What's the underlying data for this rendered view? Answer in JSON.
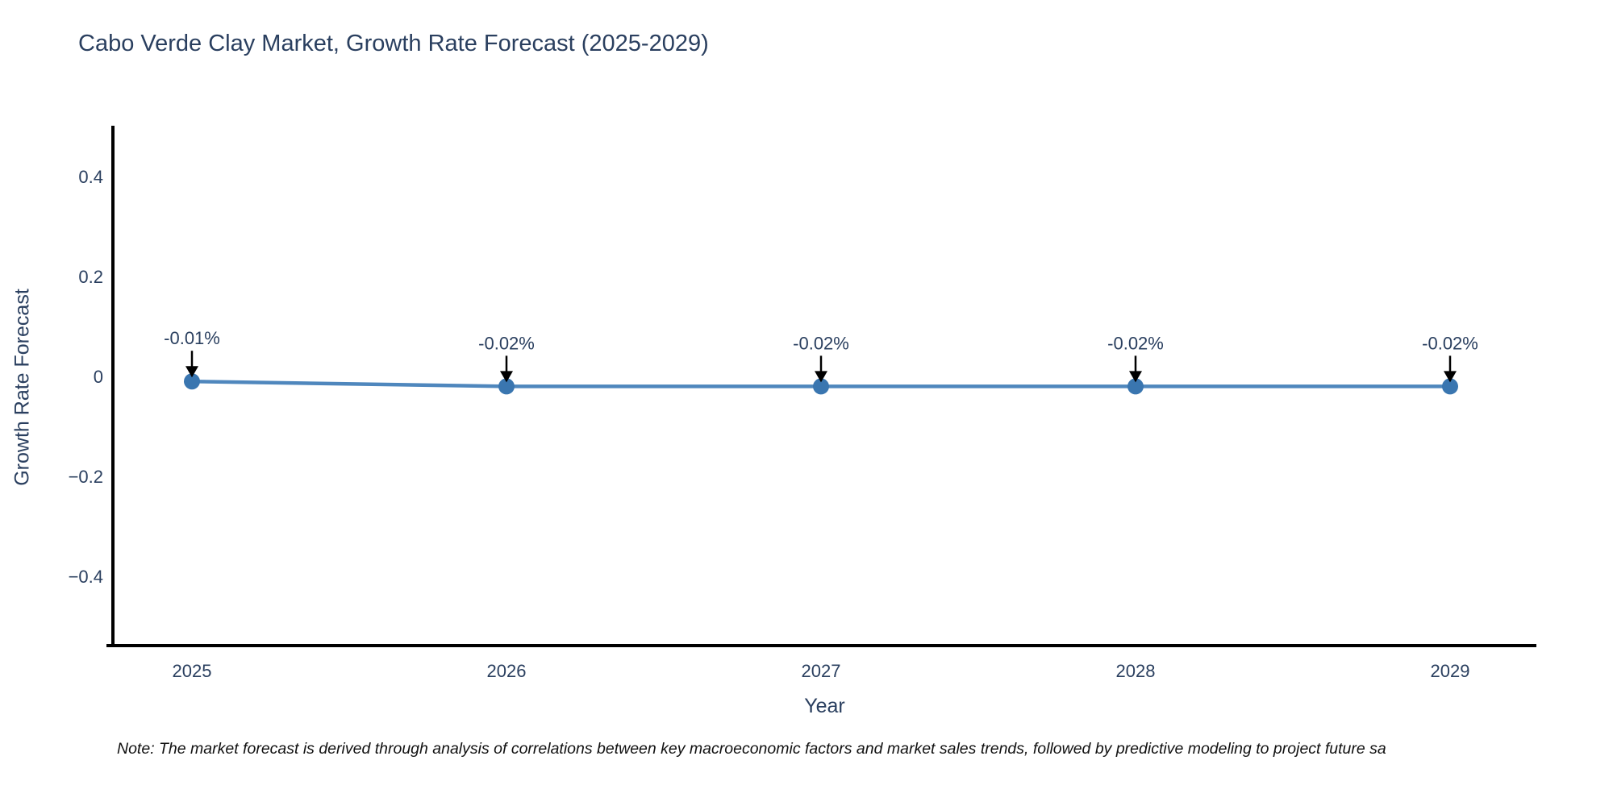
{
  "note": "Note: The market forecast is derived through analysis of correlations between key macroeconomic factors and market sales trends, followed by predictive modeling to project future sa",
  "colors": {
    "text": "#2a3f5f",
    "axis_line": "#000000",
    "series_line": "#4f87bd",
    "marker_fill": "#3a76b0",
    "arrow": "#000000",
    "background": "#ffffff",
    "note_text": "#111111"
  },
  "chart_data": {
    "type": "line",
    "title": "Cabo Verde Clay Market, Growth Rate Forecast (2025-2029)",
    "x": [
      2025,
      2026,
      2027,
      2028,
      2029
    ],
    "xtick_labels": [
      "2025",
      "2026",
      "2027",
      "2028",
      "2029"
    ],
    "series": [
      {
        "name": "Growth Rate Forecast",
        "values": [
          -0.01,
          -0.02,
          -0.02,
          -0.02,
          -0.02
        ]
      }
    ],
    "annotations": [
      "-0.01%",
      "-0.02%",
      "-0.02%",
      "-0.02%",
      "-0.02%"
    ],
    "xlabel": "Year",
    "ylabel": "Growth Rate Forecast",
    "ylim": [
      -0.54,
      0.5
    ],
    "yticks": [
      0.4,
      0.2,
      0,
      -0.2,
      -0.4
    ],
    "ytick_labels": [
      "0.4",
      "0.2",
      "0",
      "−0.2",
      "−0.4"
    ],
    "grid": false,
    "legend": "none"
  }
}
